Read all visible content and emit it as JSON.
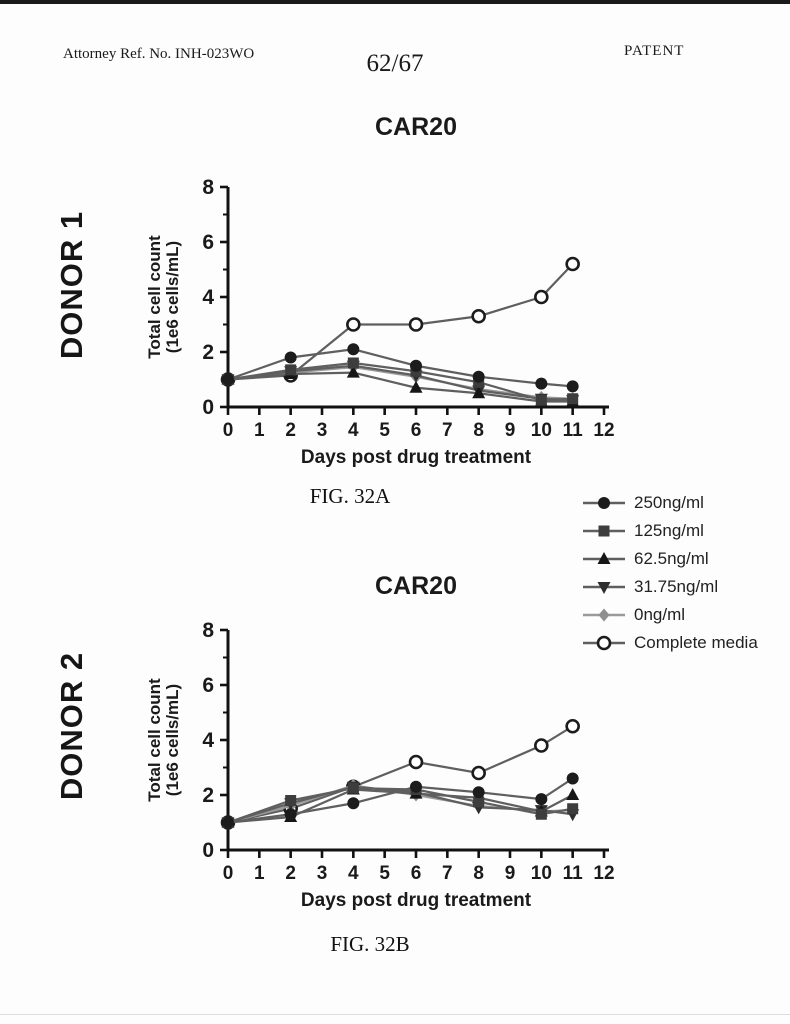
{
  "header": {
    "attorney_ref": "Attorney Ref. No. INH-023WO",
    "page_number": "62/67",
    "doc_label": "PATENT"
  },
  "figures": [
    {
      "donor": "DONOR 1",
      "caption": "FIG. 32A"
    },
    {
      "donor": "DONOR 2",
      "caption": "FIG. 32B"
    }
  ],
  "colors": {
    "ink": "#1a1a1a",
    "axis": "#111111",
    "series_line": "#5f5f5f",
    "muted_gray": "#8f8f8f",
    "background": "#fdfdfd"
  },
  "chart_data": [
    {
      "type": "line",
      "title": "CAR20",
      "donor": "DONOR 1",
      "xlabel": "Days post drug treatment",
      "ylabel_lines": [
        "Total cell count",
        "(1e6 cells/mL)"
      ],
      "x": [
        0,
        2,
        4,
        6,
        8,
        10,
        11
      ],
      "xlim": [
        0,
        12
      ],
      "ylim": [
        0,
        8
      ],
      "xticks": [
        0,
        1,
        2,
        3,
        4,
        5,
        6,
        7,
        8,
        9,
        10,
        11,
        12
      ],
      "yticks": [
        0,
        2,
        4,
        6,
        8
      ],
      "yticks_minor": [
        1,
        3,
        5,
        7
      ],
      "grid": false,
      "legend_position": "outside-right",
      "series": [
        {
          "name": "250ng/ml",
          "marker": "circle-filled",
          "color": "#1c1c1c",
          "line_color": "#5f5f5f",
          "values": [
            1.0,
            1.8,
            2.1,
            1.5,
            1.1,
            0.85,
            0.75
          ]
        },
        {
          "name": "125ng/ml",
          "marker": "square-filled",
          "color": "#3d3d3d",
          "line_color": "#5f5f5f",
          "values": [
            1.0,
            1.35,
            1.6,
            1.3,
            0.9,
            0.25,
            0.3
          ]
        },
        {
          "name": "62.5ng/ml",
          "marker": "triangle-up-filled",
          "color": "#161616",
          "line_color": "#5f5f5f",
          "values": [
            1.0,
            1.2,
            1.25,
            0.7,
            0.5,
            0.2,
            0.2
          ]
        },
        {
          "name": "31.75ng/ml",
          "marker": "triangle-down-filled",
          "color": "#2e2e2e",
          "line_color": "#5f5f5f",
          "values": [
            1.0,
            1.3,
            1.5,
            1.15,
            0.6,
            0.3,
            0.25
          ]
        },
        {
          "name": "0ng/ml",
          "marker": "diamond-filled",
          "color": "#8f8f8f",
          "line_color": "#9a9a9a",
          "values": [
            1.0,
            1.25,
            1.45,
            1.1,
            0.65,
            0.35,
            0.3
          ]
        },
        {
          "name": "Complete media",
          "marker": "circle-open",
          "color": "#1c1c1c",
          "line_color": "#5f5f5f",
          "values": [
            1.0,
            1.15,
            3.0,
            3.0,
            3.3,
            4.0,
            5.2
          ]
        }
      ]
    },
    {
      "type": "line",
      "title": "CAR20",
      "donor": "DONOR 2",
      "xlabel": "Days post drug treatment",
      "ylabel_lines": [
        "Total cell count",
        "(1e6 cells/mL)"
      ],
      "x": [
        0,
        2,
        4,
        6,
        8,
        10,
        11
      ],
      "xlim": [
        0,
        12
      ],
      "ylim": [
        0,
        8
      ],
      "xticks": [
        0,
        1,
        2,
        3,
        4,
        5,
        6,
        7,
        8,
        9,
        10,
        11,
        12
      ],
      "yticks": [
        0,
        2,
        4,
        6,
        8
      ],
      "yticks_minor": [
        1,
        3,
        5,
        7
      ],
      "grid": false,
      "legend_position": "outside-right",
      "series": [
        {
          "name": "250ng/ml",
          "marker": "circle-filled",
          "color": "#1c1c1c",
          "line_color": "#5f5f5f",
          "values": [
            1.0,
            1.3,
            1.7,
            2.3,
            2.1,
            1.85,
            2.6
          ]
        },
        {
          "name": "125ng/ml",
          "marker": "square-filled",
          "color": "#3d3d3d",
          "line_color": "#5f5f5f",
          "values": [
            1.0,
            1.8,
            2.25,
            2.2,
            1.75,
            1.3,
            1.5
          ]
        },
        {
          "name": "62.5ng/ml",
          "marker": "triangle-up-filled",
          "color": "#161616",
          "line_color": "#5f5f5f",
          "values": [
            1.0,
            1.2,
            2.2,
            2.05,
            1.9,
            1.4,
            2.0
          ]
        },
        {
          "name": "31.75ng/ml",
          "marker": "triangle-down-filled",
          "color": "#2e2e2e",
          "line_color": "#5f5f5f",
          "values": [
            1.0,
            1.7,
            2.3,
            2.1,
            1.55,
            1.45,
            1.3
          ]
        },
        {
          "name": "0ng/ml",
          "marker": "diamond-filled",
          "color": "#8f8f8f",
          "line_color": "#9a9a9a",
          "values": [
            1.0,
            1.6,
            2.35,
            2.0,
            1.6,
            1.4,
            1.45
          ]
        },
        {
          "name": "Complete media",
          "marker": "circle-open",
          "color": "#1c1c1c",
          "line_color": "#5f5f5f",
          "values": [
            1.0,
            1.5,
            2.3,
            3.2,
            2.8,
            3.8,
            4.5
          ]
        }
      ]
    }
  ]
}
